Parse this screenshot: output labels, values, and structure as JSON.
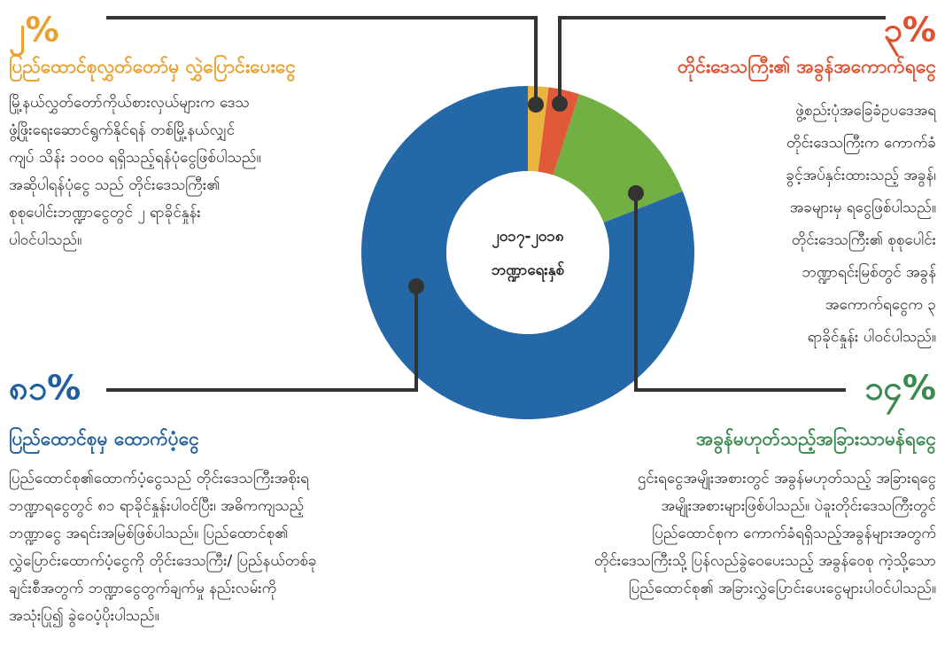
{
  "chart_data": {
    "type": "pie",
    "donut": true,
    "center_text": [
      "၂၀၁၇-၂၀၁၈",
      "ဘဏ္ဍာရေးနှစ်"
    ],
    "categories": [
      "ပြည်ထောင်စုလွှတ်တော်မှ လွှဲပြောင်းပေးငွေ",
      "တိုင်းဒေသကြီး၏ အခွန်အကောက်ရငွေ",
      "အခွန်မဟုတ်သည့်အခြားသာမန်ရငွေ",
      "ပြည်ထောင်စုမှ ထောက်ပံ့ငွေ"
    ],
    "values": [
      2,
      3,
      14,
      81
    ],
    "value_labels": [
      "၂%",
      "၃%",
      "၁၄%",
      "၈၁%"
    ],
    "colors": [
      "#e8b53e",
      "#e05a3a",
      "#72b043",
      "#2468a8"
    ],
    "label_colors": [
      "#e8a030",
      "#e0502f",
      "#3a8a50",
      "#1f5f9e"
    ],
    "descriptions": [
      [
        "မြို့နယ်လွှတ်တော်ကိုယ်စားလှယ်များက ဒေသ",
        "ဖွံ့ဖြိုးရေးဆောင်ရွက်နိုင်ရန် တစ်မြို့နယ်လျှင်",
        "ကျပ် သိန်း ၁၀၀၀ ရရှိသည့်ရန်ပုံငွေဖြစ်ပါသည်။",
        "အဆိုပါရန်ပုံငွေ သည် တိုင်းဒေသကြီး၏",
        "စုစုပေါင်းဘဏ္ဍာငွေတွင် ၂ ရာခိုင်နှုန်း",
        "ပါဝင်ပါသည်။"
      ],
      [
        "ဖွဲ့စည်းပုံအခြေခံဥပဒေအရ",
        "တိုင်းဒေသကြီးက ကောက်ခံ",
        "ခွင့်အပ်နှင်းထားသည့် အခွန်၊",
        "အခများမှ ရငွေဖြစ်ပါသည်။",
        "တိုင်းဒေသကြီး၏ စုစုပေါင်း",
        "ဘဏ္ဍာရင်းမြစ်တွင် အခွန်",
        "အကောက်ရငွေက ၃",
        "ရာခိုင်နှုန်း ပါဝင်ပါသည်။"
      ],
      [
        "ဌင်းရငွေအမျိုးအစားတွင် အခွန်မဟုတ်သည့် အခြားရငွေ",
        "အမျိုးအစားများဖြစ်ပါသည်။ ပဲခူးတိုင်းဒေသကြီးတွင်",
        "ပြည်ထောင်စုက ကောက်ခံရရှိသည့်အခွန်များအတွက်",
        "တိုင်းဒေသကြီးသို့ ပြန်လည်ခွဲဝေပေးသည့် အခွန်ဝေစု ကဲ့သို့သော",
        "ပြည်ထောင်စု၏ အခြားလွှဲပြောင်းပေးငွေများပါဝင်ပါသည်။"
      ],
      [
        "ပြည်ထောင်စု၏ထောက်ပံ့ငွေသည် တိုင်းဒေသကြီးအစိုးရ",
        "ဘဏ္ဍာရငွေတွင် ၈၁ ရာခိုင်နှုန်းပါဝင်ပြီး၊ အဓိကကျသည့်",
        "ဘဏ္ဍာငွေ အရင်းအမြစ်ဖြစ်ပါသည်။ ပြည်ထောင်စု၏",
        "လွှဲပြောင်းထောက်ပံ့ငွေကို တိုင်းဒေသကြီး/ ပြည်နယ်တစ်ခု",
        "ချင်းစီအတွက် ဘဏ္ဍာငွေတွက်ချက်မှု နည်းလမ်းကို",
        "အသုံးပြု၍ ခွဲဝေပံ့ပိုးပါသည်။"
      ]
    ]
  }
}
